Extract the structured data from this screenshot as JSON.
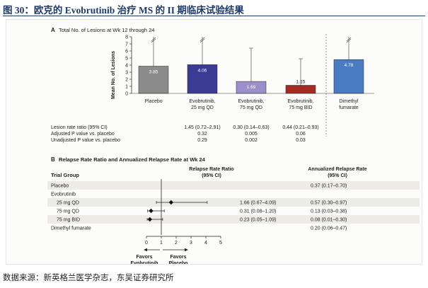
{
  "figure": {
    "title": "图 30：欧克的 Evobrutinib 治疗 MS 的 II 期临床试验结果",
    "source": "数据来源：新英格兰医学杂志，东吴证券研究所"
  },
  "chart_data": [
    {
      "type": "bar",
      "panel_label": "A",
      "title": "Total No. of Lesions at Wk 12 through 24",
      "ylabel": "Mean No. of Lesions",
      "ylim": [
        0,
        8
      ],
      "y_ticks": [
        "0",
        "1",
        "2",
        "3",
        "4",
        "5",
        "6",
        "7",
        "8"
      ],
      "categories": [
        {
          "line1": "Placebo",
          "line2": ""
        },
        {
          "line1": "Evobrutinib,",
          "line2": "25 mg QD"
        },
        {
          "line1": "Evobrutinib,",
          "line2": "75 mg QD"
        },
        {
          "line1": "Evobrutinib,",
          "line2": "75 mg BID"
        },
        {
          "line1": "Dimethyl",
          "line2": "fumarate"
        }
      ],
      "values": [
        3.85,
        4.06,
        1.69,
        1.15,
        4.78
      ],
      "value_labels": [
        "3.85",
        "4.06",
        "1.69",
        "1.15",
        "4.78"
      ],
      "ci_upper": [
        8,
        8,
        6.4,
        4.9,
        8
      ],
      "ci_truncated": [
        true,
        true,
        false,
        false,
        true
      ],
      "colors": [
        "#8c8c8c",
        "#3b3b93",
        "#9b90cc",
        "#a52a22",
        "#4a7cc4"
      ],
      "grid": false,
      "table": {
        "rows": [
          {
            "label": "Lesion rate ratio (95% CI)",
            "cells": [
              "",
              "1.45 (0.72–2.91)",
              "0.30 (0.14–0.63)",
              "0.44 (0.21–0.93)"
            ]
          },
          {
            "label": "Adjusted P value vs. placebo",
            "cells": [
              "",
              "0.32",
              "0.005",
              "0.06"
            ]
          },
          {
            "label": "Unadjusted P value vs. placebo",
            "cells": [
              "",
              "0.29",
              "0.002",
              "0.03"
            ]
          }
        ]
      }
    },
    {
      "type": "scatter",
      "panel_label": "B",
      "title": "Relapse Rate Ratio and Annualized Relapse Rate at Wk 24",
      "headers": {
        "group": "Trial Group",
        "rr_line1": "Relapse Rate Ratio",
        "rr_line2": "(95% CI)",
        "arr_line1": "Annualized Relapse Rate",
        "arr_line2": "(95% CI)"
      },
      "rows": [
        {
          "label": "Placebo",
          "indent": false,
          "rr_text": "",
          "arr_text": "0.37 (0.17–0.70)",
          "estimate": null,
          "low": null,
          "high": null
        },
        {
          "label": "Evobrutinib",
          "indent": false,
          "rr_text": "",
          "arr_text": "",
          "estimate": null,
          "low": null,
          "high": null
        },
        {
          "label": "25 mg QD",
          "indent": true,
          "rr_text": "1.66 (0.67–4.09)",
          "arr_text": "0.57 (0.30–0.97)",
          "estimate": 1.66,
          "low": 0.67,
          "high": 4.09
        },
        {
          "label": "75 mg QD",
          "indent": true,
          "rr_text": "0.31 (0.08–1.20)",
          "arr_text": "0.13 (0.03–0.38)",
          "estimate": 0.31,
          "low": 0.08,
          "high": 1.2
        },
        {
          "label": "75 mg BID",
          "indent": true,
          "rr_text": "0.23 (0.05–1.09)",
          "arr_text": "0.08 (0.01–0.30)",
          "estimate": 0.23,
          "low": 0.05,
          "high": 1.09
        },
        {
          "label": "Dimethyl fumarate",
          "indent": false,
          "rr_text": "",
          "arr_text": "0.20 (0.06–0.47)",
          "estimate": null,
          "low": null,
          "high": null
        }
      ],
      "xlim": [
        0,
        5
      ],
      "x_ticks": [
        "0",
        "1",
        "2",
        "3",
        "4",
        "5"
      ],
      "reference_line": 1,
      "favors_left": {
        "line1": "Favors",
        "line2": "Evobrutinib"
      },
      "favors_right": {
        "line1": "Favors",
        "line2": "Placebo"
      }
    }
  ]
}
